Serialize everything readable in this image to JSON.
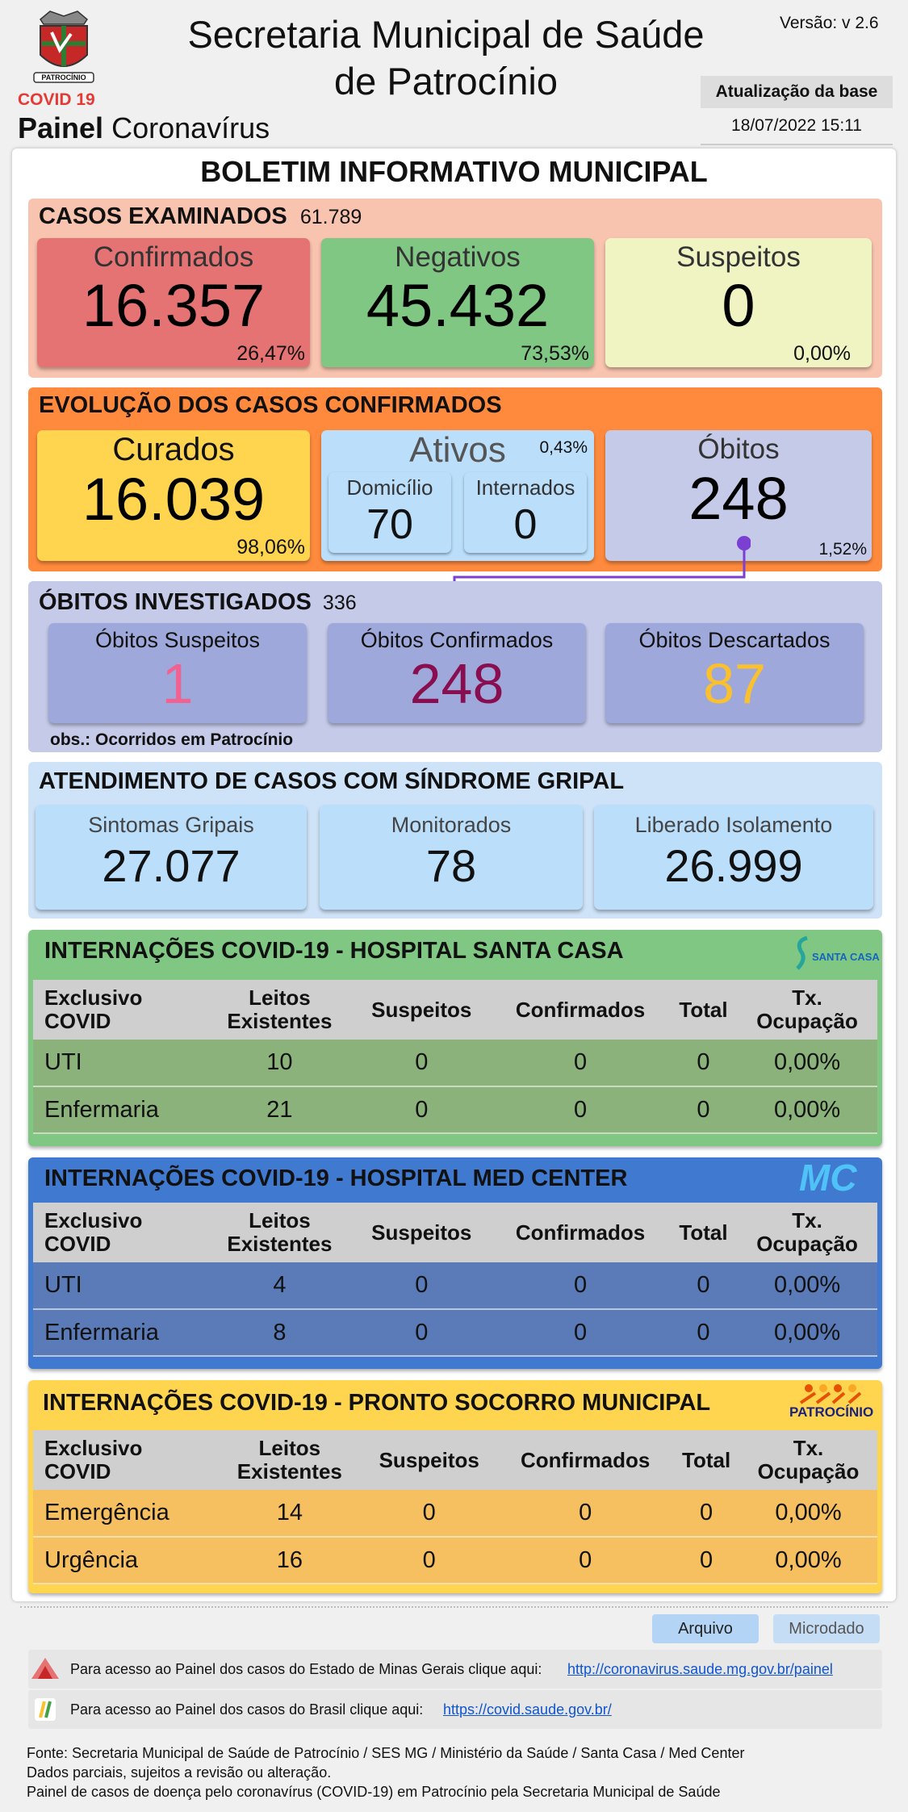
{
  "header": {
    "title_line1": "Secretaria Municipal de Saúde",
    "title_line2": "de Patrocínio",
    "version": "Versão: v 2.6",
    "update_label": "Atualização da base",
    "update_date": "18/07/2022 15:11",
    "covid_label": "COVID 19",
    "painel_bold": "Painel",
    "painel_rest": "Coronavírus",
    "logo_text": "PATROCÍNIO"
  },
  "bulletin_title": "BOLETIM INFORMATIVO MUNICIPAL",
  "examinados": {
    "title": "CASOS EXAMINADOS",
    "total": "61.789",
    "confirmados": {
      "label": "Confirmados",
      "value": "16.357",
      "pct": "26,47%"
    },
    "negativos": {
      "label": "Negativos",
      "value": "45.432",
      "pct": "73,53%"
    },
    "suspeitos": {
      "label": "Suspeitos",
      "value": "0",
      "pct": "0,00%"
    }
  },
  "evolucao": {
    "title": "EVOLUÇÃO DOS CASOS CONFIRMADOS",
    "curados": {
      "label": "Curados",
      "value": "16.039",
      "pct": "98,06%"
    },
    "ativos": {
      "label": "Ativos",
      "pct": "0,43%",
      "domicilio_label": "Domicílio",
      "domicilio_value": "70",
      "internados_label": "Internados",
      "internados_value": "0"
    },
    "obitos": {
      "label": "Óbitos",
      "value": "248",
      "pct": "1,52%"
    }
  },
  "obitos_inv": {
    "title": "ÓBITOS INVESTIGADOS",
    "total": "336",
    "suspeitos": {
      "label": "Óbitos Suspeitos",
      "value": "1"
    },
    "confirmados": {
      "label": "Óbitos Confirmados",
      "value": "248"
    },
    "descartados": {
      "label": "Óbitos Descartados",
      "value": "87"
    },
    "obs": "obs.: Ocorridos em Patrocínio"
  },
  "gripal": {
    "title": "ATENDIMENTO DE CASOS COM SÍNDROME GRIPAL",
    "sintomas": {
      "label": "Sintomas Gripais",
      "value": "27.077"
    },
    "monitorados": {
      "label": "Monitorados",
      "value": "78"
    },
    "liberado": {
      "label": "Liberado Isolamento",
      "value": "26.999"
    }
  },
  "table_headers": {
    "c1a": "Exclusivo",
    "c1b": "COVID",
    "c2a": "Leitos",
    "c2b": "Existentes",
    "c3": "Suspeitos",
    "c4": "Confirmados",
    "c5": "Total",
    "c6a": "Tx.",
    "c6b": "Ocupação"
  },
  "santa_casa": {
    "title": "INTERNAÇÕES COVID-19 - HOSPITAL SANTA CASA",
    "logo": "SANTA CASA",
    "rows": [
      [
        "UTI",
        "10",
        "0",
        "0",
        "0",
        "0,00%"
      ],
      [
        "Enfermaria",
        "21",
        "0",
        "0",
        "0",
        "0,00%"
      ]
    ]
  },
  "med_center": {
    "title": "INTERNAÇÕES COVID-19 - HOSPITAL MED CENTER",
    "logo": "MC",
    "rows": [
      [
        "UTI",
        "4",
        "0",
        "0",
        "0",
        "0,00%"
      ],
      [
        "Enfermaria",
        "8",
        "0",
        "0",
        "0",
        "0,00%"
      ]
    ]
  },
  "pronto_socorro": {
    "title": "INTERNAÇÕES COVID-19 - PRONTO SOCORRO MUNICIPAL",
    "logo": "PATROCÍNIO",
    "rows": [
      [
        "Emergência",
        "14",
        "0",
        "0",
        "0",
        "0,00%"
      ],
      [
        "Urgência",
        "16",
        "0",
        "0",
        "0",
        "0,00%"
      ]
    ]
  },
  "buttons": {
    "arquivo": "Arquivo",
    "microdado": "Microdado"
  },
  "links": {
    "mg_text": "Para acesso ao Painel dos casos do Estado de Minas Gerais clique aqui:",
    "mg_url": "http://coronavirus.saude.mg.gov.br/painel",
    "br_text": "Para acesso ao Painel dos casos do Brasil clique aqui:",
    "br_url": "https://covid.saude.gov.br/"
  },
  "footer": {
    "line1": "Fonte: Secretaria Municipal de Saúde de Patrocínio / SES MG / Ministério da Saúde / Santa Casa / Med Center",
    "line2": "Dados parciais, sujeitos a revisão ou alteração.",
    "line3": "Painel de casos de doença pelo coronavírus (COVID-19) em Patrocínio pela Secretaria Municipal de Saúde"
  },
  "colors": {
    "confirmados": "#e57373",
    "negativos": "#81c784",
    "suspeitos": "#f0f4c3",
    "curados": "#ffd54f",
    "ativos": "#bbdefb",
    "obitos": "#c5cae9",
    "obitos_confirmados_text": "#880e4f",
    "obitos_suspeitos_text": "#f06292",
    "obitos_descartados_text": "#fbc02d"
  }
}
